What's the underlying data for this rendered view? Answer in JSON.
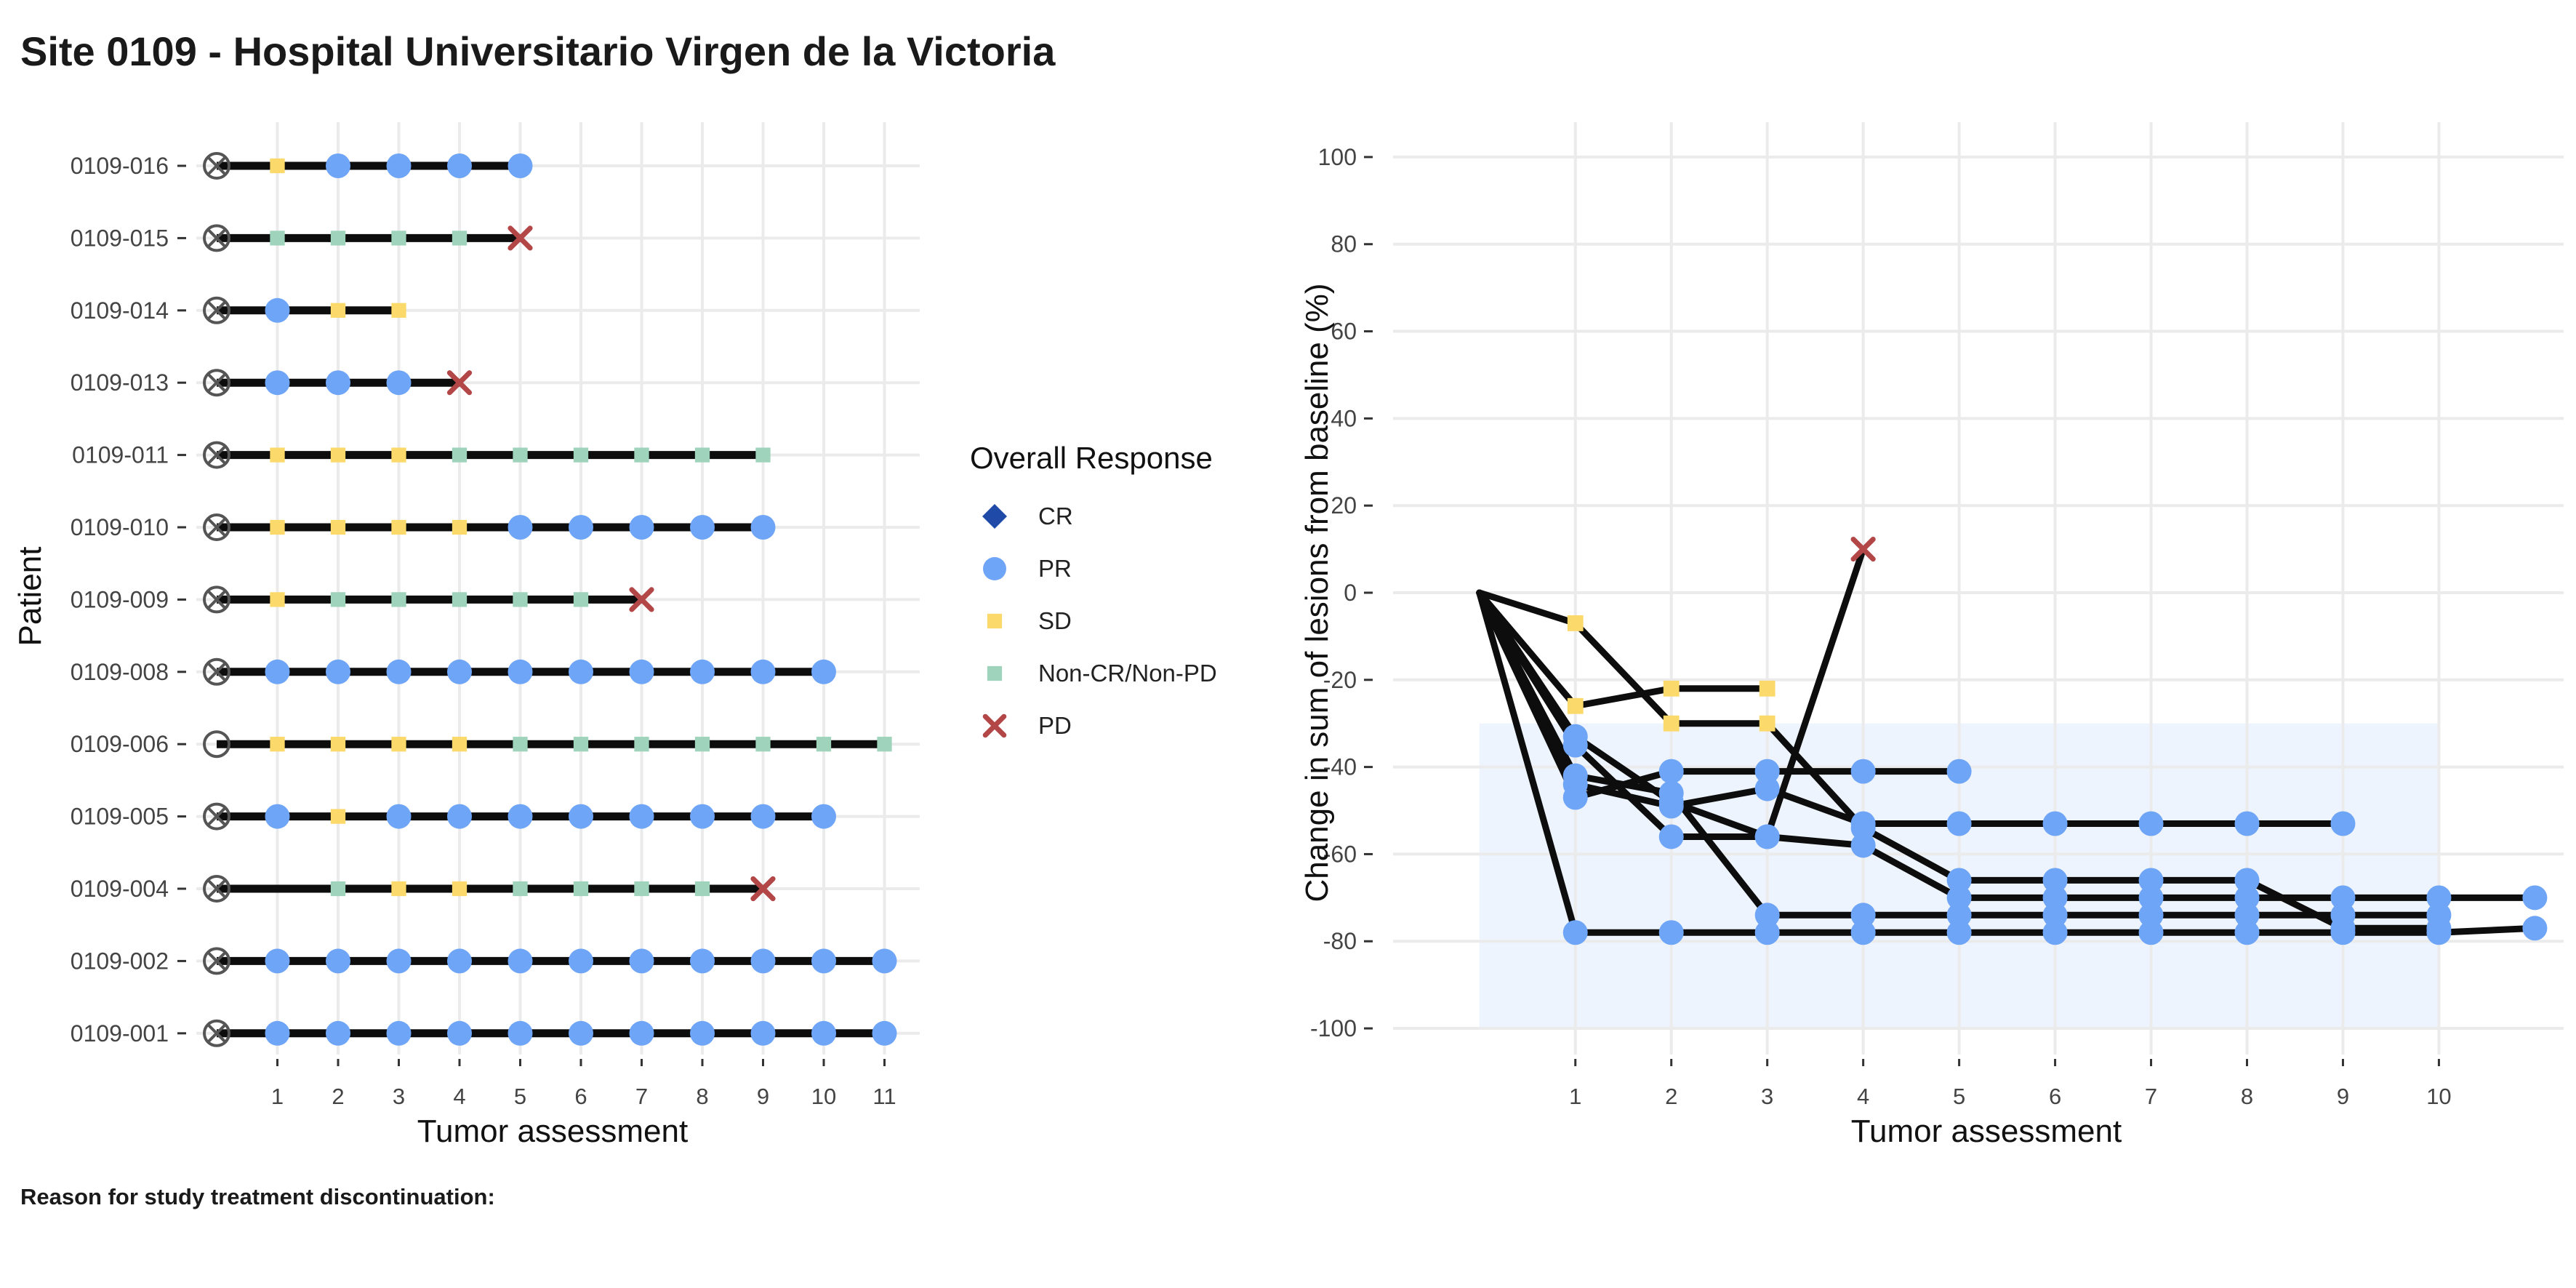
{
  "page": {
    "title": "Site 0109 - Hospital Universitario Virgen de la Victoria",
    "footnote": "Reason for study treatment discontinuation:"
  },
  "colors": {
    "CR": "#1f4aa8",
    "PR": "#6fa5f7",
    "SD": "#fbd96b",
    "Non-CR/Non-PD": "#9fd3bc",
    "PD": "#b34646",
    "line": "#0d0d0d",
    "grid": "#ebebeb",
    "band": "#eef4fd",
    "baseline_marker": "#555555"
  },
  "chart_data": [
    {
      "type": "swimmer",
      "xlabel": "Tumor assessment",
      "ylabel": "Patient",
      "x_ticks": [
        1,
        2,
        3,
        4,
        5,
        6,
        7,
        8,
        9,
        10,
        11
      ],
      "patients": [
        {
          "id": "0109-001",
          "start": 0,
          "baseline": "x",
          "responses": [
            "PR",
            "PR",
            "PR",
            "PR",
            "PR",
            "PR",
            "PR",
            "PR",
            "PR",
            "PR",
            "PR"
          ]
        },
        {
          "id": "0109-002",
          "start": 0,
          "baseline": "x",
          "responses": [
            "PR",
            "PR",
            "PR",
            "PR",
            "PR",
            "PR",
            "PR",
            "PR",
            "PR",
            "PR",
            "PR"
          ]
        },
        {
          "id": "0109-004",
          "start": 0,
          "baseline": "x",
          "responses": [
            null,
            "Non-CR/Non-PD",
            "SD",
            "SD",
            "Non-CR/Non-PD",
            "Non-CR/Non-PD",
            "Non-CR/Non-PD",
            "Non-CR/Non-PD",
            "PD"
          ]
        },
        {
          "id": "0109-005",
          "start": 0,
          "baseline": "x",
          "responses": [
            "PR",
            "SD",
            "PR",
            "PR",
            "PR",
            "PR",
            "PR",
            "PR",
            "PR",
            "PR"
          ]
        },
        {
          "id": "0109-006",
          "start": 0,
          "baseline": "o",
          "responses": [
            "SD",
            "SD",
            "SD",
            "SD",
            "Non-CR/Non-PD",
            "Non-CR/Non-PD",
            "Non-CR/Non-PD",
            "Non-CR/Non-PD",
            "Non-CR/Non-PD",
            "Non-CR/Non-PD",
            "Non-CR/Non-PD"
          ]
        },
        {
          "id": "0109-008",
          "start": 0,
          "baseline": "x",
          "responses": [
            "PR",
            "PR",
            "PR",
            "PR",
            "PR",
            "PR",
            "PR",
            "PR",
            "PR",
            "PR"
          ]
        },
        {
          "id": "0109-009",
          "start": 0,
          "baseline": "x",
          "responses": [
            "SD",
            "Non-CR/Non-PD",
            "Non-CR/Non-PD",
            "Non-CR/Non-PD",
            "Non-CR/Non-PD",
            "Non-CR/Non-PD",
            "PD"
          ]
        },
        {
          "id": "0109-010",
          "start": 0,
          "baseline": "x",
          "responses": [
            "SD",
            "SD",
            "SD",
            "SD",
            "PR",
            "PR",
            "PR",
            "PR",
            "PR"
          ]
        },
        {
          "id": "0109-011",
          "start": 0,
          "baseline": "x",
          "responses": [
            "SD",
            "SD",
            "SD",
            "Non-CR/Non-PD",
            "Non-CR/Non-PD",
            "Non-CR/Non-PD",
            "Non-CR/Non-PD",
            "Non-CR/Non-PD",
            "Non-CR/Non-PD"
          ]
        },
        {
          "id": "0109-013",
          "start": 0,
          "baseline": "x",
          "responses": [
            "PR",
            "PR",
            "PR",
            "PD"
          ]
        },
        {
          "id": "0109-014",
          "start": 0,
          "baseline": "x",
          "responses": [
            "PR",
            "SD",
            "SD"
          ]
        },
        {
          "id": "0109-015",
          "start": 0,
          "baseline": "x",
          "responses": [
            "Non-CR/Non-PD",
            "Non-CR/Non-PD",
            "Non-CR/Non-PD",
            "Non-CR/Non-PD",
            "PD"
          ]
        },
        {
          "id": "0109-016",
          "start": 0,
          "baseline": "x",
          "responses": [
            "SD",
            "PR",
            "PR",
            "PR",
            "PR"
          ]
        }
      ],
      "legend": {
        "title": "Overall Response",
        "position": "right",
        "entries": [
          "CR",
          "PR",
          "SD",
          "Non-CR/Non-PD",
          "PD"
        ]
      }
    },
    {
      "type": "line",
      "xlabel": "Tumor assessment",
      "ylabel": "Change in sum of lesions from baseline (%)",
      "xlim": [
        -0.9,
        11.3
      ],
      "ylim": [
        -106,
        108
      ],
      "x_ticks": [
        1,
        2,
        3,
        4,
        5,
        6,
        7,
        8,
        9,
        10
      ],
      "y_ticks": [
        100,
        80,
        60,
        40,
        20,
        0,
        -20,
        -40,
        -60,
        -80,
        -100
      ],
      "band": {
        "x": [
          0,
          10
        ],
        "y": [
          -100,
          -30
        ]
      },
      "grid": true,
      "series": [
        {
          "points": [
            [
              0,
              0
            ],
            [
              1,
              -78
            ],
            [
              2,
              -78
            ],
            [
              3,
              -78
            ],
            [
              4,
              -78
            ],
            [
              5,
              -78
            ],
            [
              6,
              -78
            ],
            [
              7,
              -78
            ],
            [
              8,
              -78
            ],
            [
              9,
              -78
            ],
            [
              10,
              -78
            ],
            [
              11,
              -77
            ]
          ],
          "responses": [
            null,
            "PR",
            "PR",
            "PR",
            "PR",
            "PR",
            "PR",
            "PR",
            "PR",
            "PR",
            "PR",
            "PR"
          ]
        },
        {
          "points": [
            [
              0,
              0
            ],
            [
              1,
              -33
            ],
            [
              2,
              -48
            ],
            [
              3,
              -56
            ],
            [
              4,
              -58
            ],
            [
              5,
              -70
            ],
            [
              6,
              -70
            ],
            [
              7,
              -70
            ],
            [
              8,
              -70
            ],
            [
              9,
              -70
            ],
            [
              10,
              -70
            ],
            [
              11,
              -70
            ]
          ],
          "responses": [
            null,
            "PR",
            "PR",
            "PR",
            "PR",
            "PR",
            "PR",
            "PR",
            "PR",
            "PR",
            "PR",
            "PR"
          ]
        },
        {
          "points": [
            [
              0,
              0
            ],
            [
              1,
              -42
            ],
            [
              2,
              -46
            ],
            [
              3,
              -74
            ],
            [
              4,
              -74
            ],
            [
              5,
              -74
            ],
            [
              6,
              -74
            ],
            [
              7,
              -74
            ],
            [
              8,
              -74
            ],
            [
              9,
              -74
            ],
            [
              10,
              -74
            ]
          ],
          "responses": [
            null,
            "PR",
            "PR",
            "PR",
            "PR",
            "PR",
            "PR",
            "PR",
            "PR",
            "PR",
            "PR"
          ]
        },
        {
          "points": [
            [
              0,
              0
            ],
            [
              1,
              -47
            ],
            [
              2,
              -41
            ],
            [
              3,
              -41
            ],
            [
              4,
              -41
            ],
            [
              5,
              -41
            ]
          ],
          "responses": [
            null,
            "PR",
            "PR",
            "PR",
            "PR",
            "PR"
          ]
        },
        {
          "points": [
            [
              0,
              0
            ],
            [
              1,
              -35
            ],
            [
              2,
              -56
            ],
            [
              3,
              -56
            ],
            [
              4,
              10
            ]
          ],
          "responses": [
            null,
            "PR",
            "PR",
            "PR",
            "PD"
          ]
        },
        {
          "points": [
            [
              0,
              0
            ],
            [
              1,
              -7
            ],
            [
              2,
              -30
            ],
            [
              3,
              -30
            ],
            [
              4,
              -54
            ],
            [
              5,
              -66
            ],
            [
              6,
              -66
            ],
            [
              7,
              -66
            ],
            [
              8,
              -66
            ],
            [
              9,
              -77
            ],
            [
              10,
              -77
            ]
          ],
          "responses": [
            null,
            "SD",
            "SD",
            "SD",
            "PR",
            "PR",
            "PR",
            "PR",
            "PR",
            "PR",
            "PR"
          ]
        },
        {
          "points": [
            [
              0,
              0
            ],
            [
              1,
              -26
            ],
            [
              2,
              -22
            ],
            [
              3,
              -22
            ]
          ],
          "responses": [
            null,
            "SD",
            "SD",
            "SD"
          ]
        },
        {
          "points": [
            [
              0,
              0
            ],
            [
              1,
              -44
            ],
            [
              2,
              -49
            ],
            [
              3,
              -45
            ],
            [
              4,
              -53
            ],
            [
              5,
              -53
            ],
            [
              6,
              -53
            ],
            [
              7,
              -53
            ],
            [
              8,
              -53
            ],
            [
              9,
              -53
            ]
          ],
          "responses": [
            null,
            "PR",
            "PR",
            "PR",
            "PR",
            "PR",
            "PR",
            "PR",
            "PR",
            "PR"
          ]
        }
      ]
    }
  ]
}
